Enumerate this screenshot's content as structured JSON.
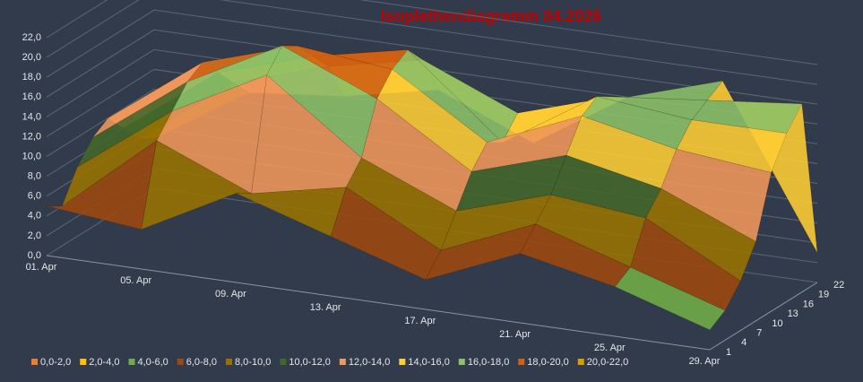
{
  "chart_data": {
    "type": "surface",
    "title": "Isoplethendiagramm 04.2026",
    "categories": [
      "01. Apr",
      "05. Apr",
      "09. Apr",
      "13. Apr",
      "17. Apr",
      "21. Apr",
      "25. Apr",
      "29. Apr"
    ],
    "depth_categories": [
      1,
      4,
      7,
      10,
      13,
      16,
      19,
      22
    ],
    "z": [
      [
        5,
        4,
        9,
        6,
        3,
        7,
        5,
        2
      ],
      [
        4,
        12,
        8,
        10,
        5,
        9,
        6,
        3
      ],
      [
        7,
        14,
        19,
        12,
        8,
        11,
        10,
        5
      ],
      [
        9,
        16,
        21,
        17,
        11,
        14,
        12,
        8
      ],
      [
        10,
        17,
        20,
        19,
        13,
        17,
        15,
        14
      ],
      [
        8,
        15,
        18,
        20,
        12,
        18,
        17,
        17
      ],
      [
        6,
        13,
        16,
        18,
        14,
        17,
        18,
        19
      ],
      [
        5,
        11,
        12,
        14,
        10,
        16,
        19,
        3
      ]
    ],
    "zlim": [
      0,
      22
    ],
    "zticks": [
      {
        "value": 0,
        "label": "0,0"
      },
      {
        "value": 2,
        "label": "2,0"
      },
      {
        "value": 4,
        "label": "4,0"
      },
      {
        "value": 6,
        "label": "6,0"
      },
      {
        "value": 8,
        "label": "8,0"
      },
      {
        "value": 10,
        "label": "10,0"
      },
      {
        "value": 12,
        "label": "12,0"
      },
      {
        "value": 14,
        "label": "14,0"
      },
      {
        "value": 16,
        "label": "16,0"
      },
      {
        "value": 18,
        "label": "18,0"
      },
      {
        "value": 20,
        "label": "20,0"
      },
      {
        "value": 22,
        "label": "22,0"
      }
    ],
    "grid": true,
    "legend": [
      {
        "name": "0,0-2,0",
        "color": "#ed7d31",
        "range": [
          0,
          2
        ]
      },
      {
        "name": "2,0-4,0",
        "color": "#ffc000",
        "range": [
          2,
          4
        ]
      },
      {
        "name": "4,0-6,0",
        "color": "#70ad47",
        "range": [
          4,
          6
        ]
      },
      {
        "name": "6,0-8,0",
        "color": "#9e480e",
        "range": [
          6,
          8
        ]
      },
      {
        "name": "8,0-10,0",
        "color": "#997300",
        "range": [
          8,
          10
        ]
      },
      {
        "name": "10,0-12,0",
        "color": "#43682b",
        "range": [
          10,
          12
        ]
      },
      {
        "name": "12,0-14,0",
        "color": "#f1975a",
        "range": [
          12,
          14
        ]
      },
      {
        "name": "14,0-16,0",
        "color": "#ffcd33",
        "range": [
          14,
          16
        ]
      },
      {
        "name": "16,0-18,0",
        "color": "#8cc168",
        "range": [
          16,
          18
        ]
      },
      {
        "name": "18,0-20,0",
        "color": "#d26012",
        "range": [
          18,
          20
        ]
      },
      {
        "name": "20,0-22,0",
        "color": "#d4a000",
        "range": [
          20,
          22
        ]
      }
    ]
  }
}
